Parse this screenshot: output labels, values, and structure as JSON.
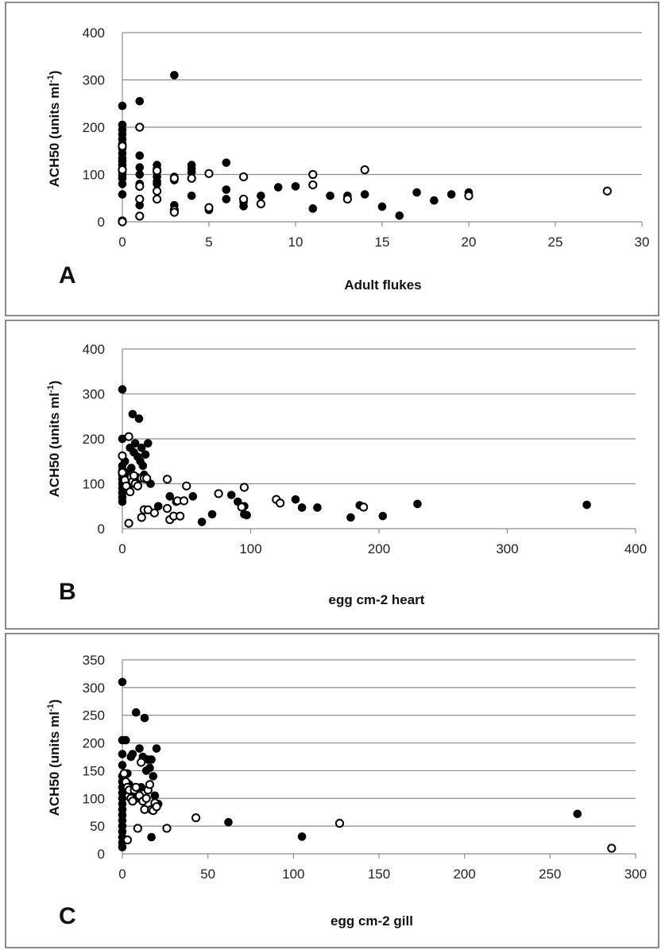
{
  "colors": {
    "grid": "#8c8c8c",
    "axis": "#8c8c8c",
    "marker": "#000000",
    "open_fill": "#ffffff"
  },
  "chart_data": [
    {
      "type": "scatter",
      "panel": "A",
      "xlabel": "Adult flukes",
      "ylabel": "ACH50 (units ml-1)",
      "xlim": [
        0,
        30
      ],
      "ylim": [
        0,
        400
      ],
      "xticks": [
        0,
        5,
        10,
        15,
        20,
        25,
        30
      ],
      "yticks": [
        0,
        100,
        200,
        300,
        400
      ],
      "grid": "horizontal",
      "series": [
        {
          "marker": "filled",
          "points": [
            [
              0,
              245
            ],
            [
              0,
              205
            ],
            [
              0,
              195
            ],
            [
              0,
              185
            ],
            [
              0,
              175
            ],
            [
              0,
              165
            ],
            [
              0,
              155
            ],
            [
              0,
              145
            ],
            [
              0,
              135
            ],
            [
              0,
              128
            ],
            [
              0,
              120
            ],
            [
              0,
              112
            ],
            [
              0,
              105
            ],
            [
              0,
              98
            ],
            [
              0,
              92
            ],
            [
              0,
              80
            ],
            [
              0,
              58
            ],
            [
              1,
              255
            ],
            [
              1,
              140
            ],
            [
              1,
              115
            ],
            [
              1,
              100
            ],
            [
              1,
              80
            ],
            [
              1,
              35
            ],
            [
              2,
              120
            ],
            [
              2,
              112
            ],
            [
              2,
              105
            ],
            [
              2,
              95
            ],
            [
              2,
              85
            ],
            [
              2,
              80
            ],
            [
              3,
              310
            ],
            [
              3,
              95
            ],
            [
              3,
              88
            ],
            [
              3,
              35
            ],
            [
              4,
              120
            ],
            [
              4,
              112
            ],
            [
              4,
              105
            ],
            [
              4,
              55
            ],
            [
              5,
              25
            ],
            [
              6,
              125
            ],
            [
              6,
              68
            ],
            [
              6,
              48
            ],
            [
              7,
              42
            ],
            [
              7,
              33
            ],
            [
              8,
              55
            ],
            [
              9,
              73
            ],
            [
              10,
              75
            ],
            [
              11,
              28
            ],
            [
              12,
              55
            ],
            [
              13,
              55
            ],
            [
              14,
              58
            ],
            [
              15,
              32
            ],
            [
              16,
              13
            ],
            [
              17,
              62
            ],
            [
              18,
              45
            ],
            [
              19,
              58
            ],
            [
              20,
              62
            ]
          ]
        },
        {
          "marker": "open",
          "points": [
            [
              0,
              160
            ],
            [
              0,
              110
            ],
            [
              0,
              2
            ],
            [
              0,
              0
            ],
            [
              1,
              200
            ],
            [
              1,
              75
            ],
            [
              1,
              48
            ],
            [
              1,
              12
            ],
            [
              2,
              108
            ],
            [
              2,
              65
            ],
            [
              2,
              48
            ],
            [
              3,
              92
            ],
            [
              3,
              25
            ],
            [
              3,
              20
            ],
            [
              4,
              92
            ],
            [
              5,
              102
            ],
            [
              5,
              30
            ],
            [
              7,
              95
            ],
            [
              7,
              48
            ],
            [
              8,
              38
            ],
            [
              11,
              100
            ],
            [
              11,
              78
            ],
            [
              13,
              48
            ],
            [
              14,
              110
            ],
            [
              20,
              55
            ],
            [
              28,
              65
            ]
          ]
        }
      ]
    },
    {
      "type": "scatter",
      "panel": "B",
      "xlabel": "egg cm-2 heart",
      "ylabel": "ACH50 (units ml-1)",
      "xlim": [
        0,
        400
      ],
      "ylim": [
        0,
        400
      ],
      "xticks": [
        0,
        100,
        200,
        300,
        400
      ],
      "yticks": [
        0,
        100,
        200,
        300,
        400
      ],
      "grid": "horizontal",
      "series": [
        {
          "marker": "filled",
          "points": [
            [
              0,
              310
            ],
            [
              0,
              200
            ],
            [
              0,
              140
            ],
            [
              0,
              130
            ],
            [
              0,
              120
            ],
            [
              0,
              110
            ],
            [
              0,
              100
            ],
            [
              0,
              90
            ],
            [
              0,
              80
            ],
            [
              0,
              70
            ],
            [
              0,
              60
            ],
            [
              2,
              150
            ],
            [
              3,
              125
            ],
            [
              4,
              105
            ],
            [
              5,
              95
            ],
            [
              6,
              180
            ],
            [
              7,
              135
            ],
            [
              8,
              255
            ],
            [
              9,
              170
            ],
            [
              10,
              190
            ],
            [
              11,
              115
            ],
            [
              12,
              160
            ],
            [
              13,
              245
            ],
            [
              14,
              150
            ],
            [
              15,
              180
            ],
            [
              16,
              140
            ],
            [
              17,
              120
            ],
            [
              18,
              165
            ],
            [
              19,
              110
            ],
            [
              20,
              190
            ],
            [
              22,
              100
            ],
            [
              28,
              50
            ],
            [
              37,
              72
            ],
            [
              42,
              60
            ],
            [
              55,
              72
            ],
            [
              62,
              15
            ],
            [
              70,
              32
            ],
            [
              85,
              75
            ],
            [
              90,
              60
            ],
            [
              95,
              50
            ],
            [
              95,
              32
            ],
            [
              97,
              30
            ],
            [
              135,
              65
            ],
            [
              140,
              47
            ],
            [
              152,
              47
            ],
            [
              178,
              25
            ],
            [
              185,
              52
            ],
            [
              203,
              28
            ],
            [
              230,
              55
            ],
            [
              362,
              53
            ]
          ]
        },
        {
          "marker": "open",
          "points": [
            [
              0,
              162
            ],
            [
              0,
              125
            ],
            [
              2,
              108
            ],
            [
              3,
              95
            ],
            [
              5,
              205
            ],
            [
              6,
              82
            ],
            [
              7,
              115
            ],
            [
              8,
              105
            ],
            [
              9,
              118
            ],
            [
              10,
              100
            ],
            [
              12,
              95
            ],
            [
              15,
              112
            ],
            [
              17,
              112
            ],
            [
              19,
              112
            ],
            [
              5,
              12
            ],
            [
              15,
              25
            ],
            [
              17,
              42
            ],
            [
              20,
              42
            ],
            [
              25,
              35
            ],
            [
              35,
              45
            ],
            [
              35,
              110
            ],
            [
              37,
              20
            ],
            [
              40,
              28
            ],
            [
              43,
              62
            ],
            [
              45,
              28
            ],
            [
              48,
              62
            ],
            [
              50,
              95
            ],
            [
              75,
              78
            ],
            [
              93,
              48
            ],
            [
              95,
              92
            ],
            [
              120,
              65
            ],
            [
              123,
              57
            ],
            [
              188,
              48
            ]
          ]
        }
      ]
    },
    {
      "type": "scatter",
      "panel": "C",
      "xlabel": "egg cm-2 gill",
      "ylabel": "ACH50 (units ml-1)",
      "xlim": [
        0,
        300
      ],
      "ylim": [
        0,
        350
      ],
      "xticks": [
        0,
        50,
        100,
        150,
        200,
        250,
        300
      ],
      "yticks": [
        0,
        50,
        100,
        150,
        200,
        250,
        300,
        350
      ],
      "grid": "horizontal",
      "series": [
        {
          "marker": "filled",
          "points": [
            [
              0,
              310
            ],
            [
              0,
              205
            ],
            [
              0,
              180
            ],
            [
              0,
              160
            ],
            [
              0,
              140
            ],
            [
              0,
              130
            ],
            [
              0,
              120
            ],
            [
              0,
              110
            ],
            [
              0,
              100
            ],
            [
              0,
              90
            ],
            [
              0,
              80
            ],
            [
              0,
              70
            ],
            [
              0,
              60
            ],
            [
              0,
              50
            ],
            [
              0,
              40
            ],
            [
              0,
              30
            ],
            [
              0,
              20
            ],
            [
              0,
              12
            ],
            [
              2,
              205
            ],
            [
              3,
              145
            ],
            [
              4,
              125
            ],
            [
              5,
              175
            ],
            [
              6,
              180
            ],
            [
              7,
              110
            ],
            [
              8,
              255
            ],
            [
              9,
              100
            ],
            [
              10,
              190
            ],
            [
              11,
              120
            ],
            [
              12,
              175
            ],
            [
              13,
              245
            ],
            [
              14,
              150
            ],
            [
              15,
              170
            ],
            [
              16,
              155
            ],
            [
              17,
              170
            ],
            [
              18,
              140
            ],
            [
              19,
              105
            ],
            [
              20,
              190
            ],
            [
              21,
              90
            ],
            [
              17,
              30
            ],
            [
              62,
              57
            ],
            [
              105,
              31
            ],
            [
              266,
              72
            ]
          ]
        },
        {
          "marker": "open",
          "points": [
            [
              1,
              145
            ],
            [
              2,
              130
            ],
            [
              3,
              120
            ],
            [
              4,
              115
            ],
            [
              5,
              100
            ],
            [
              6,
              95
            ],
            [
              7,
              115
            ],
            [
              8,
              120
            ],
            [
              10,
              105
            ],
            [
              11,
              165
            ],
            [
              12,
              95
            ],
            [
              13,
              80
            ],
            [
              14,
              100
            ],
            [
              15,
              115
            ],
            [
              16,
              125
            ],
            [
              17,
              80
            ],
            [
              18,
              78
            ],
            [
              19,
              92
            ],
            [
              20,
              85
            ],
            [
              9,
              46
            ],
            [
              3,
              25
            ],
            [
              26,
              46
            ],
            [
              43,
              65
            ],
            [
              127,
              55
            ],
            [
              286,
              10
            ]
          ]
        }
      ]
    }
  ],
  "panels": [
    {
      "letter": "A",
      "xlabel": "Adult flukes",
      "ylabel_main": "ACH50 (units ml",
      "ylabel_sup": "-1",
      "ylabel_end": ")"
    },
    {
      "letter": "B",
      "xlabel": "egg cm-2 heart",
      "ylabel_main": "ACH50 (units ml",
      "ylabel_sup": "-1",
      "ylabel_end": ")"
    },
    {
      "letter": "C",
      "xlabel": "egg cm-2 gill",
      "ylabel_main": "ACH50 (units ml",
      "ylabel_sup": "-1",
      "ylabel_end": ")"
    }
  ]
}
